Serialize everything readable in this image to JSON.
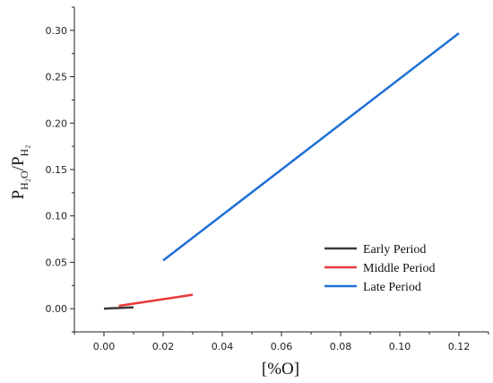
{
  "chart_data": {
    "type": "line",
    "title": "",
    "xlabel": "[%O]",
    "ylabel": {
      "base": "P",
      "num_sub": "H₂O",
      "slash": "/",
      "den_base": "P",
      "den_sub": "H₂"
    },
    "xlim": [
      -0.01,
      0.13
    ],
    "ylim": [
      -0.025,
      0.325
    ],
    "xticks": [
      {
        "value": 0.0,
        "label": "0.00"
      },
      {
        "value": 0.02,
        "label": "0.02"
      },
      {
        "value": 0.04,
        "label": "0.04"
      },
      {
        "value": 0.06,
        "label": "0.06"
      },
      {
        "value": 0.08,
        "label": "0.08"
      },
      {
        "value": 0.1,
        "label": "0.10"
      },
      {
        "value": 0.12,
        "label": "0.12"
      }
    ],
    "yticks": [
      {
        "value": 0.0,
        "label": "0.00"
      },
      {
        "value": 0.05,
        "label": "0.05"
      },
      {
        "value": 0.1,
        "label": "0.10"
      },
      {
        "value": 0.15,
        "label": "0.15"
      },
      {
        "value": 0.2,
        "label": "0.20"
      },
      {
        "value": 0.25,
        "label": "0.25"
      },
      {
        "value": 0.3,
        "label": "0.30"
      }
    ],
    "grid": false,
    "legend_position": "bottom-right",
    "series": [
      {
        "name": "Early Period",
        "color": "#3a3a3a",
        "points": [
          [
            0.0,
            0.0
          ],
          [
            0.01,
            0.0015
          ]
        ]
      },
      {
        "name": "Middle Period",
        "color": "#e8393a",
        "points": [
          [
            0.005,
            0.003
          ],
          [
            0.03,
            0.015
          ]
        ]
      },
      {
        "name": "Late Period",
        "color": "#1f6fd6",
        "points": [
          [
            0.02,
            0.052
          ],
          [
            0.12,
            0.297
          ]
        ]
      }
    ]
  }
}
